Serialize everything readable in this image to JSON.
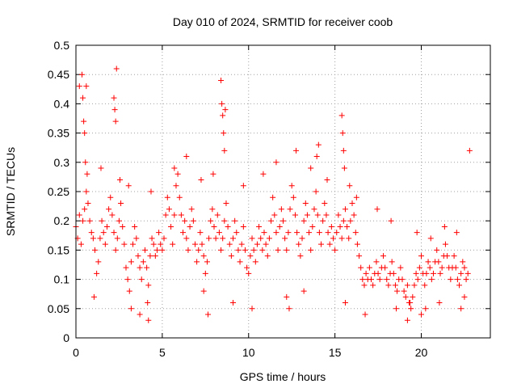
{
  "chart_data": {
    "type": "scatter",
    "title": "Day 010 of 2024, SRMTID for receiver coob",
    "xlabel": "GPS time / hours",
    "ylabel": "SRMTID / TECUs",
    "xlim": [
      0,
      24
    ],
    "ylim": [
      0,
      0.5
    ],
    "xticks": [
      0,
      5,
      10,
      15,
      20
    ],
    "xtick_labels": [
      "0",
      "5",
      "10",
      "15",
      "20"
    ],
    "yticks": [
      0,
      0.05,
      0.1,
      0.15,
      0.2,
      0.25,
      0.3,
      0.35,
      0.4,
      0.45,
      0.5
    ],
    "ytick_labels": [
      "0",
      "0.05",
      "0.1",
      "0.15",
      "0.2",
      "0.25",
      "0.3",
      "0.35",
      "0.4",
      "0.45",
      "0.5"
    ],
    "grid": true,
    "marker": "+",
    "color": "#ff0000",
    "series": [
      {
        "name": "SRMTID",
        "x": [
          0.0,
          0.1,
          0.2,
          0.3,
          0.4,
          0.5,
          0.6,
          0.7,
          0.8,
          0.9,
          1.0,
          1.1,
          1.2,
          1.3,
          1.4,
          1.5,
          1.6,
          1.7,
          1.8,
          1.9,
          2.0,
          2.1,
          2.2,
          2.3,
          2.4,
          2.5,
          2.6,
          2.7,
          2.8,
          2.9,
          3.0,
          3.1,
          3.2,
          3.3,
          3.4,
          3.5,
          3.6,
          3.7,
          3.8,
          3.9,
          4.0,
          4.1,
          4.2,
          4.3,
          4.4,
          4.5,
          4.6,
          4.7,
          4.8,
          4.9,
          5.0,
          5.1,
          5.2,
          5.3,
          5.4,
          5.5,
          5.6,
          5.7,
          5.8,
          5.9,
          6.0,
          6.1,
          6.2,
          6.3,
          6.4,
          6.5,
          6.6,
          6.7,
          6.8,
          6.9,
          7.0,
          7.1,
          7.2,
          7.3,
          7.4,
          7.5,
          7.6,
          7.7,
          7.8,
          7.9,
          8.0,
          8.1,
          8.2,
          8.3,
          8.4,
          8.5,
          8.6,
          8.7,
          8.8,
          8.9,
          9.0,
          9.1,
          9.2,
          9.3,
          9.4,
          9.5,
          9.6,
          9.7,
          9.8,
          9.9,
          10.0,
          10.1,
          10.2,
          10.3,
          10.4,
          10.5,
          10.6,
          10.7,
          10.8,
          10.9,
          11.0,
          11.1,
          11.2,
          11.3,
          11.4,
          11.5,
          11.6,
          11.7,
          11.8,
          11.9,
          12.0,
          12.1,
          12.2,
          12.3,
          12.4,
          12.5,
          12.6,
          12.7,
          12.8,
          12.9,
          13.0,
          13.1,
          13.2,
          13.3,
          13.4,
          13.5,
          13.6,
          13.7,
          13.8,
          13.9,
          14.0,
          14.1,
          14.2,
          14.3,
          14.4,
          14.5,
          14.6,
          14.7,
          14.8,
          14.9,
          15.0,
          15.1,
          15.2,
          15.3,
          15.4,
          15.5,
          15.6,
          15.7,
          15.8,
          15.9,
          16.0,
          16.1,
          16.2,
          16.3,
          16.4,
          16.5,
          16.6,
          16.7,
          16.8,
          16.9,
          17.0,
          17.1,
          17.2,
          17.3,
          17.4,
          17.5,
          17.6,
          17.7,
          17.8,
          17.9,
          18.0,
          18.1,
          18.2,
          18.3,
          18.4,
          18.5,
          18.6,
          18.7,
          18.8,
          18.9,
          19.0,
          19.1,
          19.2,
          19.3,
          19.4,
          19.5,
          19.6,
          19.7,
          19.8,
          19.9,
          20.0,
          20.1,
          20.2,
          20.3,
          20.4,
          20.5,
          20.6,
          20.7,
          20.8,
          20.9,
          21.0,
          21.1,
          21.2,
          21.3,
          21.4,
          21.5,
          21.6,
          21.7,
          21.8,
          21.9,
          22.0,
          22.1,
          22.2,
          22.3,
          22.4,
          22.5,
          22.6,
          22.7,
          22.8,
          0.2,
          0.35,
          0.4,
          0.45,
          0.5,
          0.55,
          0.6,
          2.2,
          2.25,
          2.3,
          2.35,
          8.4,
          8.45,
          8.5,
          8.55,
          8.6,
          8.65,
          15.4,
          15.45,
          15.5,
          15.55,
          15.6,
          1.05,
          3.2,
          3.7,
          4.15,
          4.2,
          7.4,
          7.65,
          9.1,
          10.2,
          12.2,
          12.35,
          13.2,
          13.95,
          14.05,
          16.75,
          18.55,
          19.2,
          19.35,
          20.0,
          20.25,
          21.05,
          22.3,
          22.5,
          0.65,
          1.45,
          2.55,
          3.05,
          4.35,
          5.7,
          6.4,
          7.25,
          7.95,
          9.7,
          10.85,
          11.6,
          12.75,
          13.6,
          14.55,
          15.85,
          16.25,
          17.45,
          18.25,
          19.75,
          20.55,
          21.35,
          22.05
        ],
        "y": [
          0.19,
          0.17,
          0.21,
          0.16,
          0.2,
          0.22,
          0.25,
          0.23,
          0.2,
          0.18,
          0.17,
          0.15,
          0.11,
          0.13,
          0.17,
          0.2,
          0.18,
          0.16,
          0.19,
          0.22,
          0.24,
          0.21,
          0.18,
          0.15,
          0.17,
          0.2,
          0.23,
          0.19,
          0.16,
          0.12,
          0.1,
          0.08,
          0.13,
          0.16,
          0.19,
          0.17,
          0.14,
          0.12,
          0.1,
          0.13,
          0.15,
          0.12,
          0.09,
          0.14,
          0.17,
          0.16,
          0.14,
          0.15,
          0.18,
          0.16,
          0.15,
          0.17,
          0.21,
          0.24,
          0.22,
          0.19,
          0.16,
          0.21,
          0.26,
          0.28,
          0.24,
          0.21,
          0.18,
          0.2,
          0.17,
          0.15,
          0.19,
          0.22,
          0.2,
          0.16,
          0.13,
          0.15,
          0.18,
          0.16,
          0.14,
          0.11,
          0.13,
          0.17,
          0.2,
          0.22,
          0.19,
          0.17,
          0.21,
          0.18,
          0.15,
          0.17,
          0.2,
          0.23,
          0.19,
          0.16,
          0.14,
          0.17,
          0.2,
          0.18,
          0.15,
          0.13,
          0.16,
          0.19,
          0.15,
          0.12,
          0.11,
          0.14,
          0.17,
          0.15,
          0.13,
          0.16,
          0.19,
          0.17,
          0.15,
          0.18,
          0.16,
          0.14,
          0.17,
          0.2,
          0.24,
          0.21,
          0.18,
          0.15,
          0.19,
          0.22,
          0.2,
          0.17,
          0.15,
          0.18,
          0.22,
          0.26,
          0.24,
          0.21,
          0.18,
          0.16,
          0.14,
          0.17,
          0.2,
          0.23,
          0.21,
          0.18,
          0.15,
          0.19,
          0.22,
          0.25,
          0.21,
          0.18,
          0.16,
          0.2,
          0.23,
          0.21,
          0.18,
          0.16,
          0.19,
          0.17,
          0.15,
          0.18,
          0.21,
          0.19,
          0.17,
          0.2,
          0.22,
          0.19,
          0.17,
          0.2,
          0.23,
          0.21,
          0.18,
          0.16,
          0.14,
          0.12,
          0.1,
          0.09,
          0.11,
          0.1,
          0.12,
          0.1,
          0.09,
          0.11,
          0.13,
          0.11,
          0.1,
          0.12,
          0.14,
          0.12,
          0.1,
          0.09,
          0.11,
          0.13,
          0.11,
          0.09,
          0.08,
          0.1,
          0.12,
          0.1,
          0.08,
          0.07,
          0.09,
          0.06,
          0.05,
          0.07,
          0.09,
          0.11,
          0.1,
          0.12,
          0.14,
          0.11,
          0.09,
          0.11,
          0.13,
          0.12,
          0.1,
          0.11,
          0.13,
          0.15,
          0.13,
          0.11,
          0.12,
          0.14,
          0.16,
          0.14,
          0.12,
          0.1,
          0.12,
          0.14,
          0.12,
          0.1,
          0.09,
          0.11,
          0.13,
          0.12,
          0.1,
          0.11,
          0.32,
          0.43,
          0.45,
          0.41,
          0.37,
          0.35,
          0.3,
          0.43,
          0.41,
          0.39,
          0.37,
          0.46,
          0.44,
          0.4,
          0.38,
          0.35,
          0.32,
          0.39,
          0.38,
          0.35,
          0.32,
          0.29,
          0.06,
          0.07,
          0.05,
          0.04,
          0.06,
          0.03,
          0.08,
          0.04,
          0.06,
          0.05,
          0.07,
          0.05,
          0.08,
          0.31,
          0.33,
          0.04,
          0.05,
          0.03,
          0.06,
          0.04,
          0.05,
          0.06,
          0.05,
          0.07,
          0.28,
          0.29,
          0.27,
          0.26,
          0.25,
          0.29,
          0.31,
          0.27,
          0.28,
          0.26,
          0.28,
          0.3,
          0.32,
          0.29,
          0.27,
          0.26,
          0.24,
          0.22,
          0.2,
          0.18,
          0.17,
          0.19,
          0.18
        ]
      }
    ]
  }
}
